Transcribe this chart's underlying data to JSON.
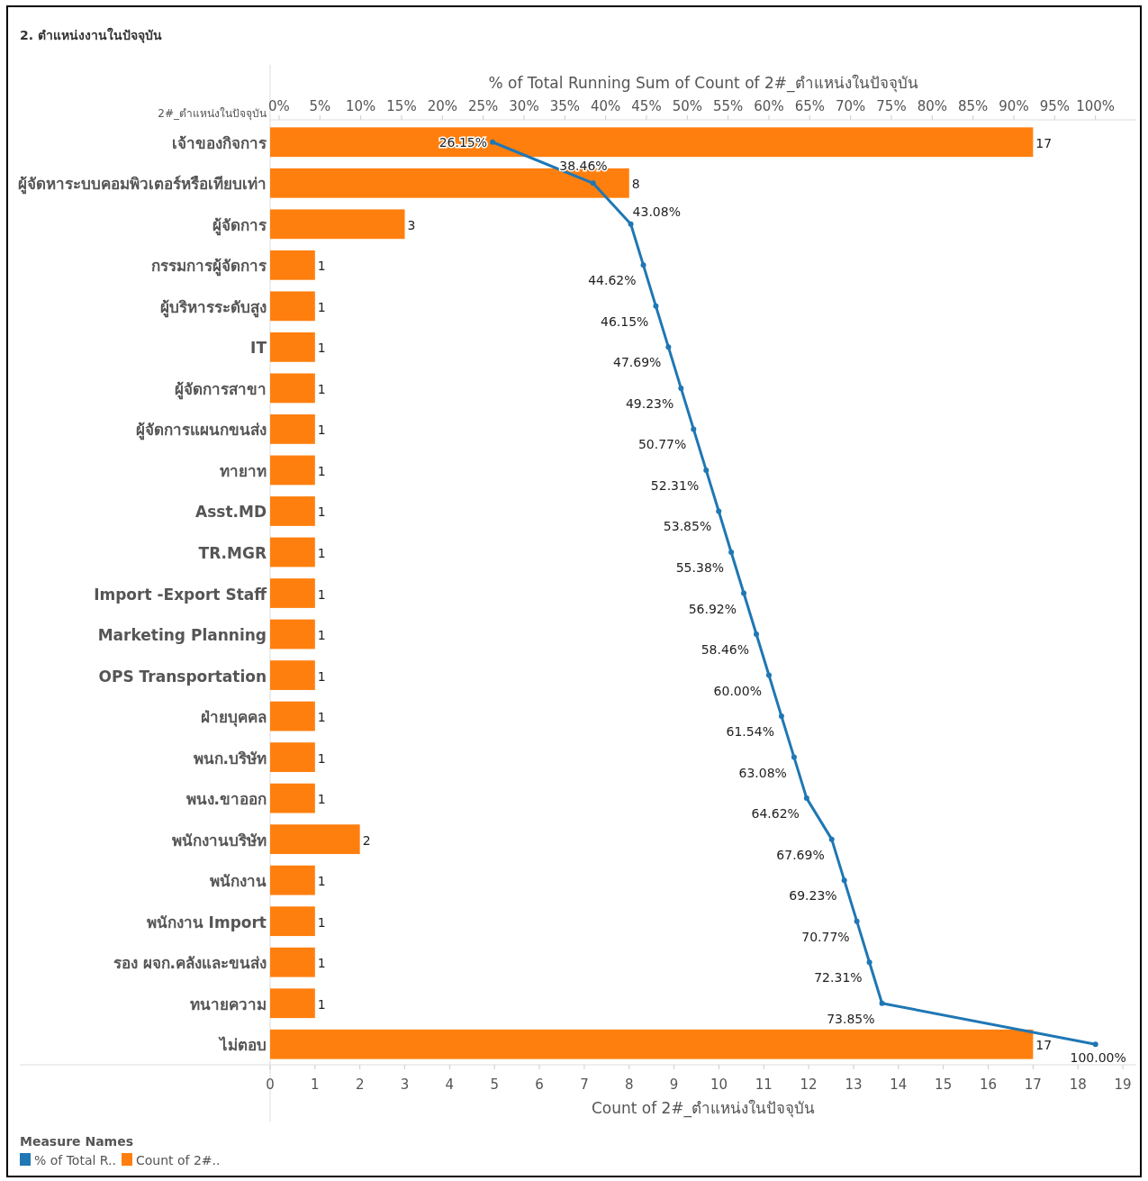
{
  "chart_data": {
    "type": "bar",
    "orientation": "horizontal",
    "title": "2. ตำแหน่งงานในปัจจุบัน",
    "ylabel": "2#_ตำแหน่งในปัจจุบัน",
    "xlabel": "Count of 2#_ตำแหน่งในปัจจุบัน",
    "x2label": "% of Total Running Sum of Count of 2#_ตำแหน่งในปัจจุบัน",
    "legend_title": "Measure Names",
    "legend": "bottom left",
    "data_labels": true,
    "categories": [
      "เจ้าของกิจการ",
      "ผู้จัดหาระบบคอมพิวเตอร์หรือเทียบเท่า",
      "ผู้จัดการ",
      "กรรมการผู้จัดการ",
      "ผู้บริหารระดับสูง",
      "IT",
      "ผู้จัดการสาขา",
      "ผู้จัดการแผนกขนส่ง",
      "ทายาท",
      "Asst.MD",
      "TR.MGR",
      "Import -Export Staff",
      "Marketing Planning",
      "OPS Transportation",
      "ฝ่ายบุคคล",
      "พนก.บริษัท",
      "พนง.ขาออก",
      "พนักงานบริษัท",
      "พนักงาน",
      "พนักงาน Import",
      "รอง ผจก.คลังและขนส่ง",
      "ทนายความ",
      "ไม่ตอบ"
    ],
    "series": [
      {
        "name": "% of Total R..",
        "type": "line",
        "axis": "x2",
        "color": "#1f77b4",
        "marker": "circle",
        "line_style": "solid",
        "values": [
          26.15,
          38.46,
          43.08,
          44.62,
          46.15,
          47.69,
          49.23,
          50.77,
          52.31,
          53.85,
          55.38,
          56.92,
          58.46,
          60.0,
          61.54,
          63.08,
          64.62,
          67.69,
          69.23,
          70.77,
          72.31,
          73.85,
          100.0
        ],
        "value_labels": [
          "26.15%",
          "38.46%",
          "43.08%",
          "44.62%",
          "46.15%",
          "47.69%",
          "49.23%",
          "50.77%",
          "52.31%",
          "53.85%",
          "55.38%",
          "56.92%",
          "58.46%",
          "60.00%",
          "61.54%",
          "63.08%",
          "64.62%",
          "67.69%",
          "69.23%",
          "70.77%",
          "72.31%",
          "73.85%",
          "100.00%"
        ]
      },
      {
        "name": "Count of 2#..",
        "color": "#ff7f0e",
        "values": [
          17,
          8,
          3,
          1,
          1,
          1,
          1,
          1,
          1,
          1,
          1,
          1,
          1,
          1,
          1,
          1,
          1,
          2,
          1,
          1,
          1,
          1,
          17
        ]
      }
    ],
    "xlim": [
      0,
      19.3
    ],
    "xticks": [
      0,
      1,
      2,
      3,
      4,
      5,
      6,
      7,
      8,
      9,
      10,
      11,
      12,
      13,
      14,
      15,
      16,
      17,
      18,
      19
    ],
    "x2lim": [
      -1.1,
      105
    ],
    "x2ticks": [
      {
        "value": 0,
        "label": "0%"
      },
      {
        "value": 5,
        "label": "5%"
      },
      {
        "value": 10,
        "label": "10%"
      },
      {
        "value": 15,
        "label": "15%"
      },
      {
        "value": 20,
        "label": "20%"
      },
      {
        "value": 25,
        "label": "25%"
      },
      {
        "value": 30,
        "label": "30%"
      },
      {
        "value": 35,
        "label": "35%"
      },
      {
        "value": 40,
        "label": "40%"
      },
      {
        "value": 45,
        "label": "45%"
      },
      {
        "value": 50,
        "label": "50%"
      },
      {
        "value": 55,
        "label": "55%"
      },
      {
        "value": 60,
        "label": "60%"
      },
      {
        "value": 65,
        "label": "65%"
      },
      {
        "value": 70,
        "label": "70%"
      },
      {
        "value": 75,
        "label": "75%"
      },
      {
        "value": 80,
        "label": "80%"
      },
      {
        "value": 85,
        "label": "85%"
      },
      {
        "value": 90,
        "label": "90%"
      },
      {
        "value": 95,
        "label": "95%"
      },
      {
        "value": 100,
        "label": "100%"
      }
    ]
  }
}
